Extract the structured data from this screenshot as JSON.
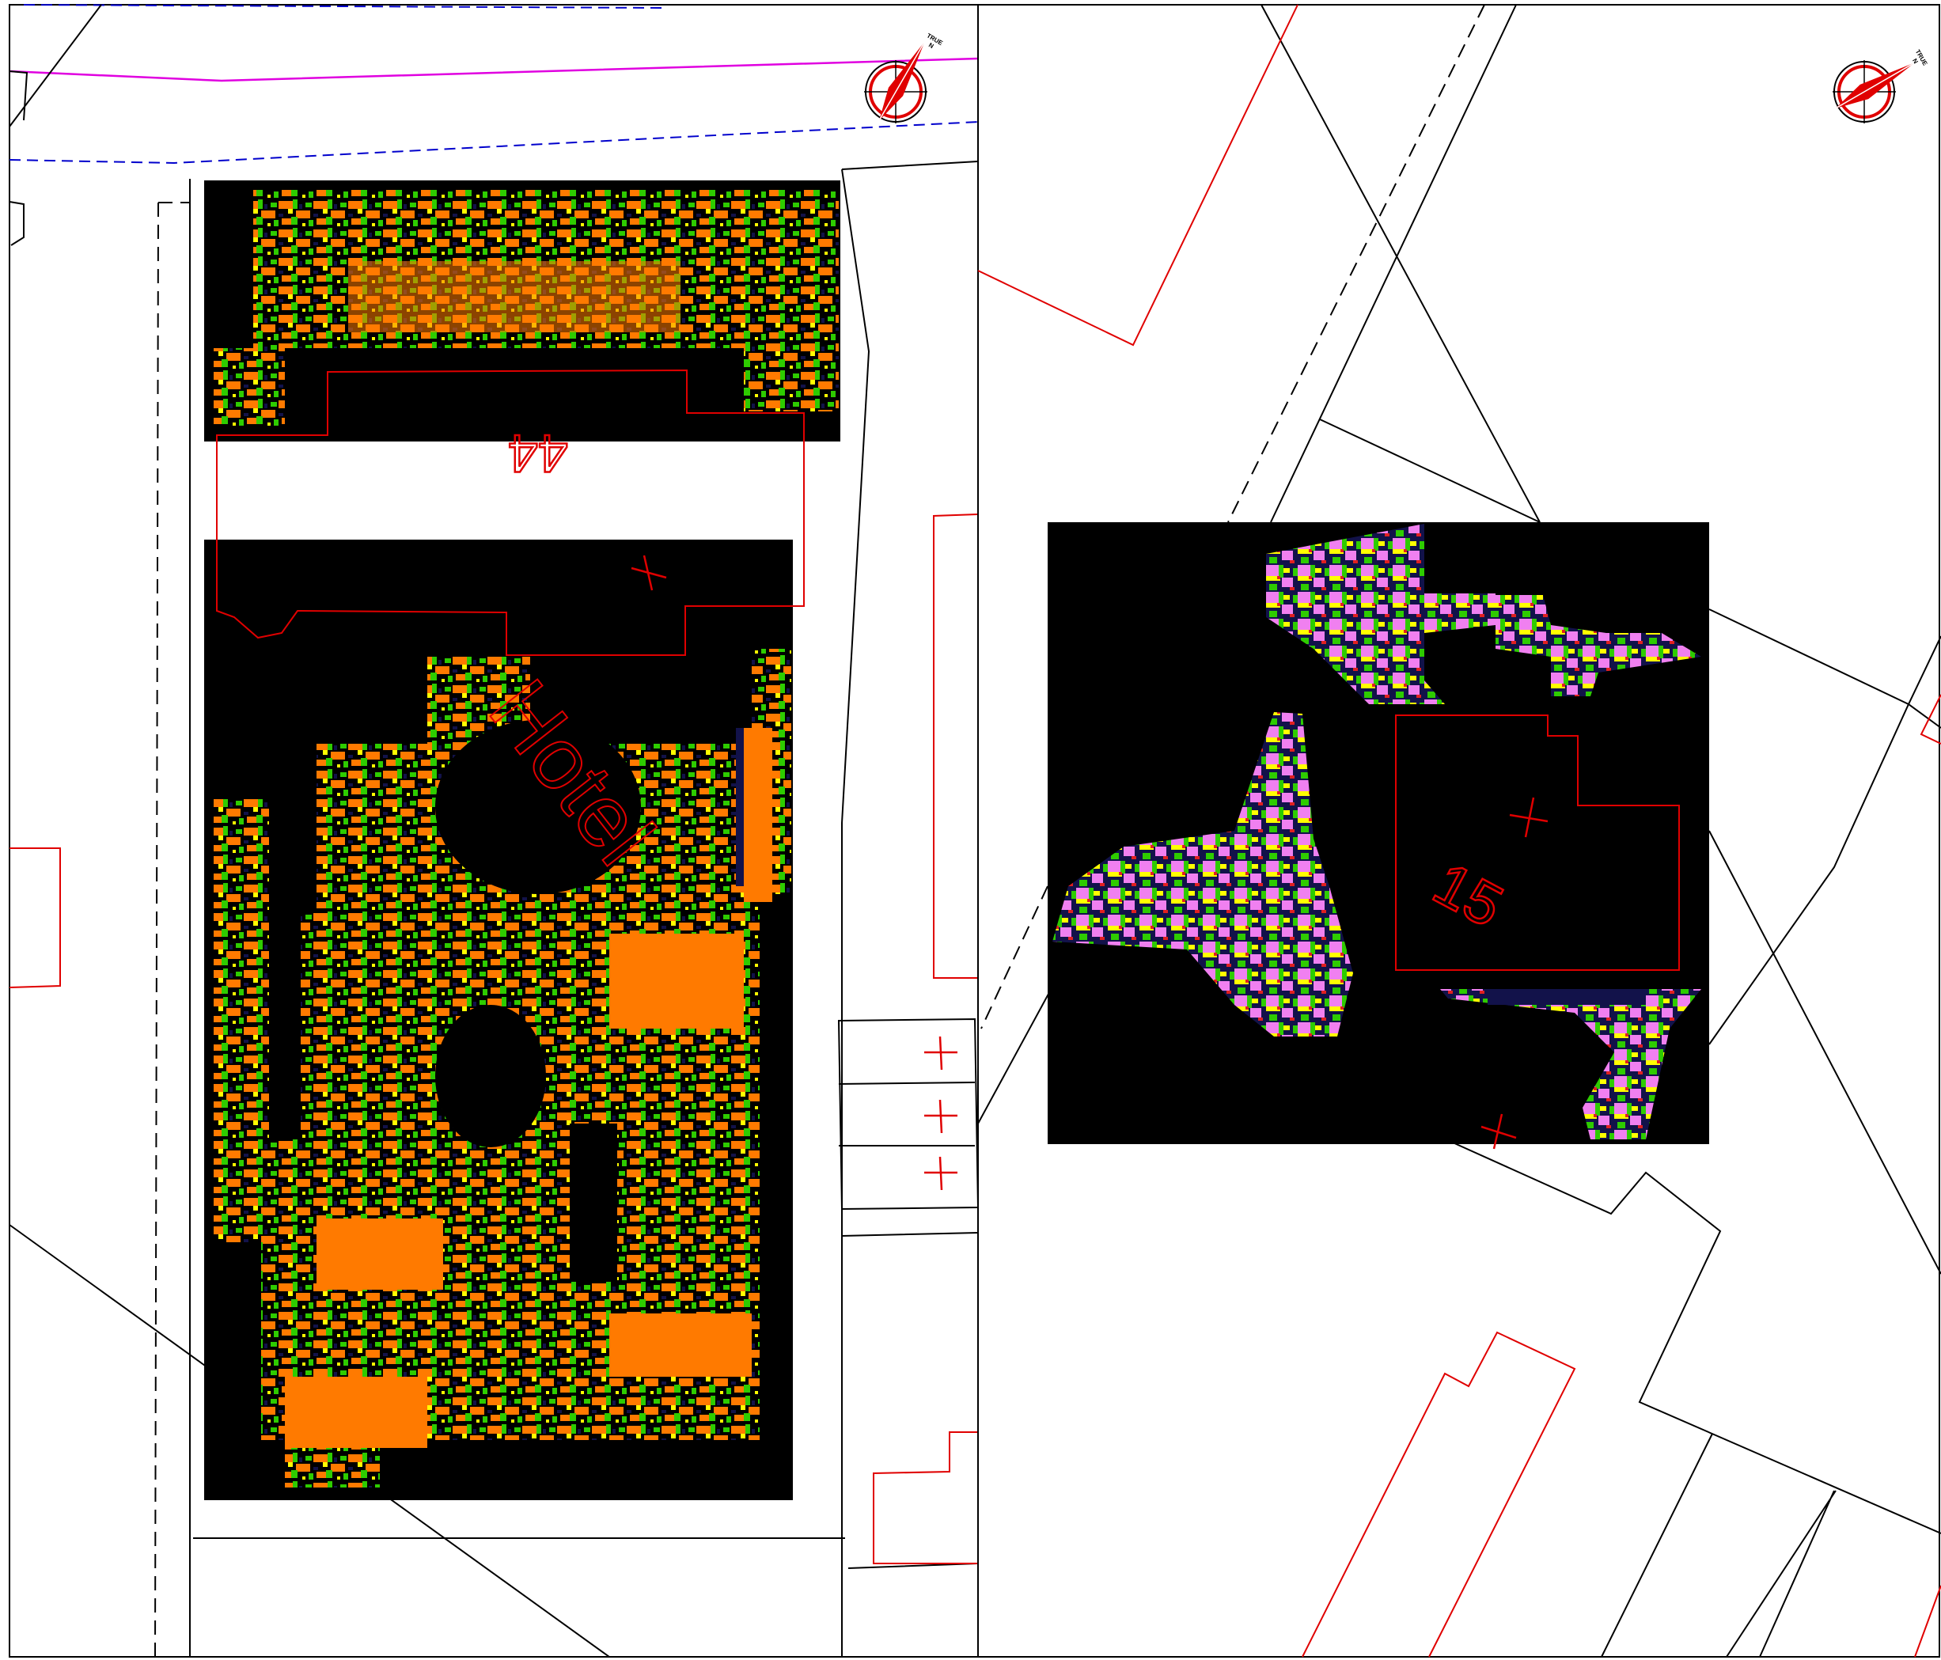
{
  "panels": [
    {
      "id": "left",
      "labels": {
        "plot": "44",
        "building": "Hotel"
      },
      "compass": {
        "text_top": "TRUE",
        "text_bottom": "N"
      }
    },
    {
      "id": "right",
      "labels": {
        "plot": "15"
      },
      "compass": {
        "text_top": "TRUE",
        "text_bottom": "N"
      }
    }
  ],
  "colors": {
    "background": "#ffffff",
    "boundary": "#000000",
    "building_outline": "#e00000",
    "road_edge_dashed": "#0000cc",
    "road_centerline": "#e000e0",
    "survey_background": "#000000",
    "survey_orange": "#ff7a00",
    "survey_green": "#2ecc00",
    "survey_yellow": "#ffff00",
    "survey_navy": "#12124a",
    "survey_pink": "#f080f0",
    "survey_red": "#e02020"
  }
}
